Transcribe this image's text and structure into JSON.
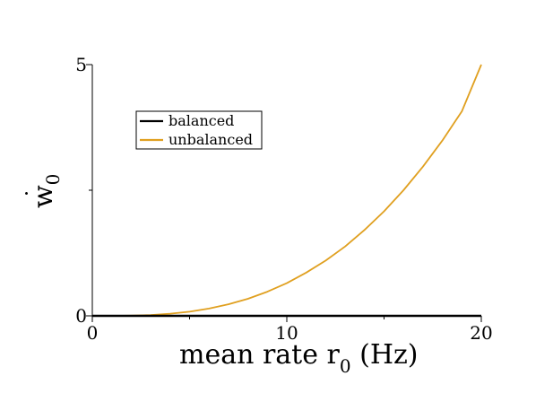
{
  "chart_data": {
    "type": "line",
    "title": "",
    "xlabel": "mean rate r",
    "xlabel_sub": "0",
    "xlabel_unit": " (Hz)",
    "ylabel": "w",
    "ylabel_sub": "0",
    "xlim": [
      0,
      20
    ],
    "ylim": [
      0,
      5
    ],
    "x_ticks_labeled": [
      {
        "value": 0,
        "label": "0"
      },
      {
        "value": 10,
        "label": "10"
      },
      {
        "value": 20,
        "label": "20"
      }
    ],
    "x_ticks_minor": [
      5,
      15
    ],
    "y_ticks_labeled": [
      {
        "value": 0,
        "label": "0"
      },
      {
        "value": 5,
        "label": "5"
      }
    ],
    "y_ticks_minor": [
      2.5
    ],
    "grid": false,
    "legend_position": "top-left",
    "series": [
      {
        "name": "balanced",
        "color": "#000000",
        "x": [
          0,
          20
        ],
        "y": [
          0,
          0
        ]
      },
      {
        "name": "unbalanced",
        "color": "#e0a020",
        "x": [
          1,
          2,
          3,
          4,
          5,
          6,
          7,
          8,
          9,
          10,
          11,
          12,
          13,
          14,
          15,
          16,
          17,
          18,
          19,
          20
        ],
        "y": [
          0.0,
          0.004,
          0.015,
          0.042,
          0.083,
          0.145,
          0.23,
          0.34,
          0.48,
          0.65,
          0.86,
          1.1,
          1.38,
          1.71,
          2.08,
          2.5,
          2.97,
          3.49,
          4.07,
          5.0
        ]
      }
    ]
  }
}
